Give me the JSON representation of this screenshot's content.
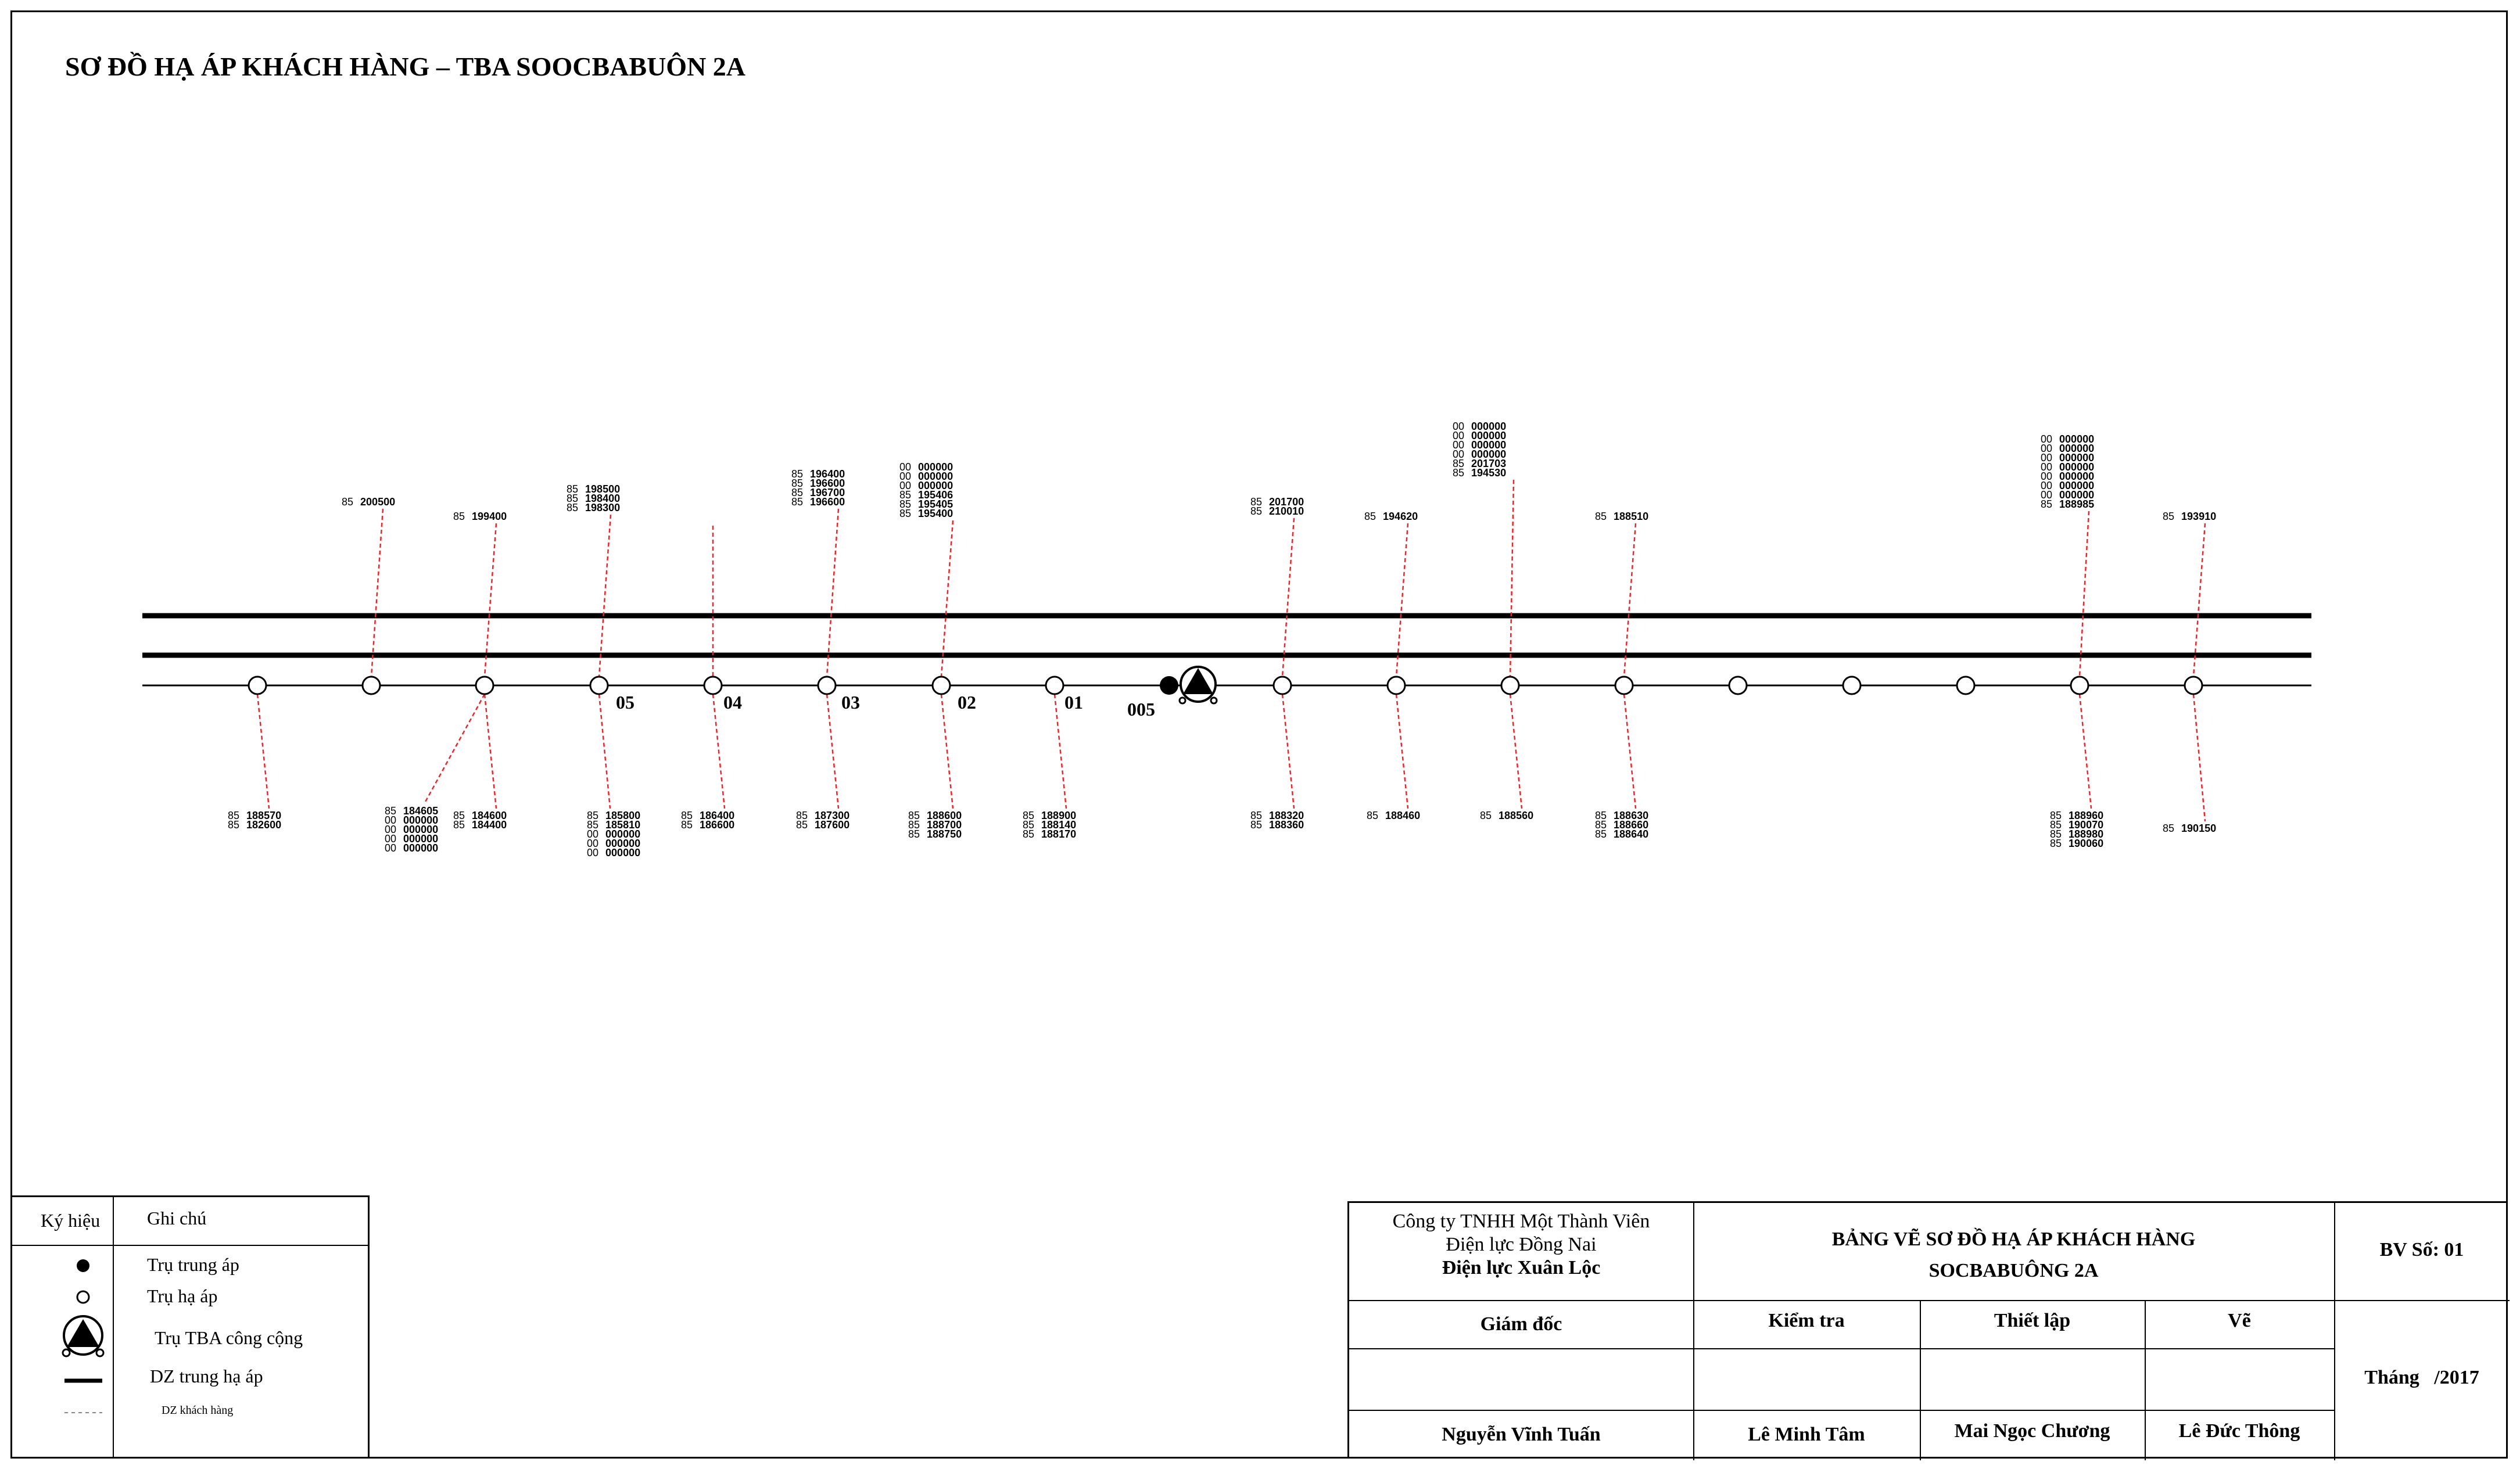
{
  "title": "SƠ ĐỒ HẠ ÁP KHÁCH HÀNG – TBA SOOCBABUÔN 2A",
  "pole_numbers": [
    "05",
    "04",
    "03",
    "02",
    "01",
    "005"
  ],
  "customer_groups_top": [
    {
      "pole": 1,
      "lines": [
        [
          "85",
          "200500"
        ]
      ]
    },
    {
      "pole": 2,
      "lines": [
        [
          "85",
          "199400"
        ]
      ]
    },
    {
      "pole": 3,
      "lines": [
        [
          "85",
          "198500"
        ],
        [
          "85",
          "198400"
        ],
        [
          "85",
          "198300"
        ]
      ]
    },
    {
      "pole": 5,
      "lines": [
        [
          "85",
          "196400"
        ],
        [
          "85",
          "196600"
        ],
        [
          "85",
          "196700"
        ],
        [
          "85",
          "196600"
        ]
      ]
    },
    {
      "pole": 6,
      "lines": [
        [
          "00",
          "000000"
        ],
        [
          "00",
          "000000"
        ],
        [
          "00",
          "000000"
        ],
        [
          "85",
          "195406"
        ],
        [
          "85",
          "195405"
        ],
        [
          "85",
          "195400"
        ]
      ]
    },
    {
      "pole": 9,
      "lines": [
        [
          "85",
          "201700"
        ],
        [
          "85",
          "210010"
        ]
      ]
    },
    {
      "pole": 10,
      "lines": [
        [
          "85",
          "194620"
        ]
      ]
    },
    {
      "pole": 11,
      "lines": [
        [
          "00",
          "000000"
        ],
        [
          "00",
          "000000"
        ],
        [
          "00",
          "000000"
        ],
        [
          "00",
          "000000"
        ],
        [
          "85",
          "201703"
        ],
        [
          "85",
          "194530"
        ]
      ]
    },
    {
      "pole": 12,
      "lines": [
        [
          "85",
          "188510"
        ]
      ]
    },
    {
      "pole": 16,
      "lines": [
        [
          "00",
          "000000"
        ],
        [
          "00",
          "000000"
        ],
        [
          "00",
          "000000"
        ],
        [
          "00",
          "000000"
        ],
        [
          "00",
          "000000"
        ],
        [
          "00",
          "000000"
        ],
        [
          "00",
          "000000"
        ],
        [
          "85",
          "188985"
        ]
      ]
    },
    {
      "pole": 17,
      "lines": [
        [
          "85",
          "193910"
        ]
      ]
    }
  ],
  "customer_groups_bottom": [
    {
      "pole": 0,
      "lines": [
        [
          "85",
          "188570"
        ],
        [
          "85",
          "182600"
        ]
      ]
    },
    {
      "pole": 2,
      "lines": [
        [
          "85",
          "184605"
        ],
        [
          "00",
          "000000"
        ],
        [
          "00",
          "000000"
        ],
        [
          "00",
          "000000"
        ],
        [
          "00",
          "000000"
        ]
      ]
    },
    {
      "pole": 2,
      "lines": [
        [
          "85",
          "184600"
        ],
        [
          "85",
          "184400"
        ]
      ]
    },
    {
      "pole": 3,
      "lines": [
        [
          "85",
          "185800"
        ],
        [
          "85",
          "185810"
        ],
        [
          "00",
          "000000"
        ],
        [
          "00",
          "000000"
        ],
        [
          "00",
          "000000"
        ]
      ]
    },
    {
      "pole": 4,
      "lines": [
        [
          "85",
          "186400"
        ],
        [
          "85",
          "186600"
        ]
      ]
    },
    {
      "pole": 5,
      "lines": [
        [
          "85",
          "187300"
        ],
        [
          "85",
          "187600"
        ]
      ]
    },
    {
      "pole": 6,
      "lines": [
        [
          "85",
          "188600"
        ],
        [
          "85",
          "188700"
        ],
        [
          "85",
          "188750"
        ]
      ]
    },
    {
      "pole": 7,
      "lines": [
        [
          "85",
          "188900"
        ],
        [
          "85",
          "188140"
        ],
        [
          "85",
          "188170"
        ]
      ]
    },
    {
      "pole": 9,
      "lines": [
        [
          "85",
          "188320"
        ],
        [
          "85",
          "188360"
        ]
      ]
    },
    {
      "pole": 10,
      "lines": [
        [
          "85",
          "188460"
        ]
      ]
    },
    {
      "pole": 11,
      "lines": [
        [
          "85",
          "188560"
        ]
      ]
    },
    {
      "pole": 12,
      "lines": [
        [
          "85",
          "188630"
        ],
        [
          "85",
          "188660"
        ],
        [
          "85",
          "188640"
        ]
      ]
    },
    {
      "pole": 16,
      "lines": [
        [
          "85",
          "188960"
        ],
        [
          "85",
          "190070"
        ],
        [
          "85",
          "188980"
        ],
        [
          "85",
          "190060"
        ]
      ]
    },
    {
      "pole": 17,
      "lines": [
        [
          "85",
          "190150"
        ]
      ]
    }
  ],
  "legend": {
    "header_symbol": "Ký hiệu",
    "header_note": "Ghi chú",
    "items": [
      {
        "icon": "medium-voltage-pole-icon",
        "label": "Trụ trung áp"
      },
      {
        "icon": "low-voltage-pole-icon",
        "label": "Trụ hạ áp"
      },
      {
        "icon": "public-substation-pole-icon",
        "label": "Trụ TBA công cộng"
      },
      {
        "icon": "medium-low-voltage-line-icon",
        "label": "DZ trung hạ áp"
      },
      {
        "icon": "customer-line-icon",
        "label": "DZ khách hàng"
      }
    ]
  },
  "title_block": {
    "company_line1": "Công ty TNHH Một Thành Viên",
    "company_line2": "Điện lực Đồng Nai",
    "company_line3": "Điện lực Xuân Lộc",
    "drawing_title_line1": "BẢNG VẼ SƠ ĐỒ HẠ ÁP KHÁCH HÀNG",
    "drawing_title_line2": "SOCBABUÔNG 2A",
    "drawing_number": "BV Số: 01",
    "role_director": "Giám đốc",
    "role_check": "Kiểm tra",
    "role_design": "Thiết lập",
    "role_draw": "Vẽ",
    "date": "Tháng   /2017",
    "name_director": "Nguyễn Vĩnh Tuấn",
    "name_check": "Lê Minh Tâm",
    "name_design": "Mai Ngọc Chương",
    "name_draw": "Lê Đức Thông"
  },
  "colors": {
    "line": "#000000",
    "customer_line": "#e8272b"
  }
}
